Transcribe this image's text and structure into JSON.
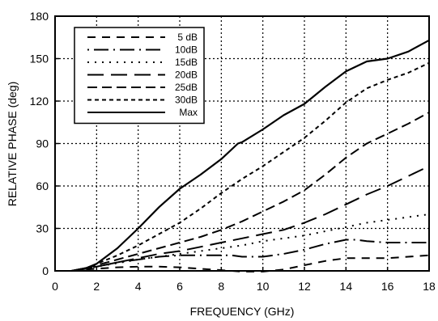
{
  "chart_data": {
    "type": "line",
    "title": "",
    "xlabel": "FREQUENCY (GHz)",
    "ylabel": "RELATIVE PHASE (deg)",
    "xlim": [
      0,
      18
    ],
    "ylim": [
      0,
      180
    ],
    "xticks": [
      0,
      2,
      4,
      6,
      8,
      10,
      12,
      14,
      16,
      18
    ],
    "yticks": [
      0,
      30,
      60,
      90,
      120,
      150,
      180
    ],
    "grid": true,
    "legend_position": "top-left",
    "series": [
      {
        "name": "5 dB",
        "dash": "long",
        "x": [
          0.8,
          1.5,
          2,
          3,
          4,
          5,
          6,
          7,
          8,
          9,
          10,
          11,
          12,
          13,
          14,
          15,
          16,
          17,
          18
        ],
        "y": [
          0,
          1,
          1.5,
          2.5,
          3,
          3,
          2.5,
          1.5,
          0.5,
          -0.5,
          -0.5,
          1,
          4,
          7,
          9,
          9,
          9,
          10,
          11
        ]
      },
      {
        "name": "10dB",
        "dash": "dot-long",
        "x": [
          0.8,
          1.5,
          2,
          3,
          4,
          5,
          6,
          7,
          8,
          8.5,
          9,
          10,
          11,
          12,
          13,
          14,
          14.5,
          15,
          16,
          17,
          18
        ],
        "y": [
          0,
          1.5,
          3,
          6,
          8,
          10,
          11,
          11,
          11,
          11,
          10,
          10,
          12,
          15,
          19,
          22,
          22,
          21,
          20,
          20,
          20
        ]
      },
      {
        "name": "15dB",
        "dash": "dot",
        "x": [
          0.8,
          1.5,
          2,
          3,
          4,
          5,
          6,
          7,
          8,
          9,
          10,
          11,
          12,
          13,
          14,
          15,
          16,
          17,
          18
        ],
        "y": [
          0,
          1.5,
          3,
          5.5,
          8,
          10,
          12,
          14,
          16,
          18,
          21,
          23,
          25,
          28,
          31,
          34,
          36,
          38,
          40
        ]
      },
      {
        "name": "20dB",
        "dash": "longer",
        "x": [
          0.8,
          1.5,
          2,
          3,
          4,
          5,
          6,
          7,
          8,
          9,
          10,
          11,
          12,
          13,
          14,
          15,
          16,
          17,
          18
        ],
        "y": [
          0,
          2,
          3,
          6,
          9,
          12,
          14,
          17,
          20,
          23,
          26,
          29,
          34,
          40,
          47,
          54,
          60,
          67,
          74
        ]
      },
      {
        "name": "25dB",
        "dash": "medium",
        "x": [
          0.8,
          1.5,
          2,
          3,
          4,
          5,
          6,
          7,
          8,
          9,
          10,
          11,
          12,
          13,
          14,
          15,
          16,
          17,
          18
        ],
        "y": [
          0,
          2,
          4,
          8,
          12,
          16,
          20,
          24,
          29,
          35,
          42,
          49,
          57,
          68,
          80,
          90,
          97,
          104,
          112
        ]
      },
      {
        "name": "30dB",
        "dash": "short",
        "x": [
          0.8,
          1.5,
          2,
          3,
          4,
          5,
          6,
          7,
          8,
          9,
          10,
          11,
          12,
          13,
          14,
          15,
          16,
          17,
          18
        ],
        "y": [
          0,
          2,
          5,
          11,
          18,
          26,
          34,
          44,
          55,
          65,
          74,
          84,
          94,
          106,
          119,
          129,
          135,
          140,
          147
        ]
      },
      {
        "name": "Max",
        "dash": "solid",
        "x": [
          0.8,
          1.5,
          2,
          3,
          4,
          5,
          6,
          7,
          8,
          8.8,
          9,
          10,
          11,
          12,
          13,
          14,
          15,
          16,
          17,
          18
        ],
        "y": [
          0,
          2,
          5,
          16,
          30,
          45,
          58,
          68,
          79,
          90,
          91,
          100,
          110,
          118,
          130,
          141,
          148,
          150,
          155,
          163
        ]
      }
    ]
  }
}
